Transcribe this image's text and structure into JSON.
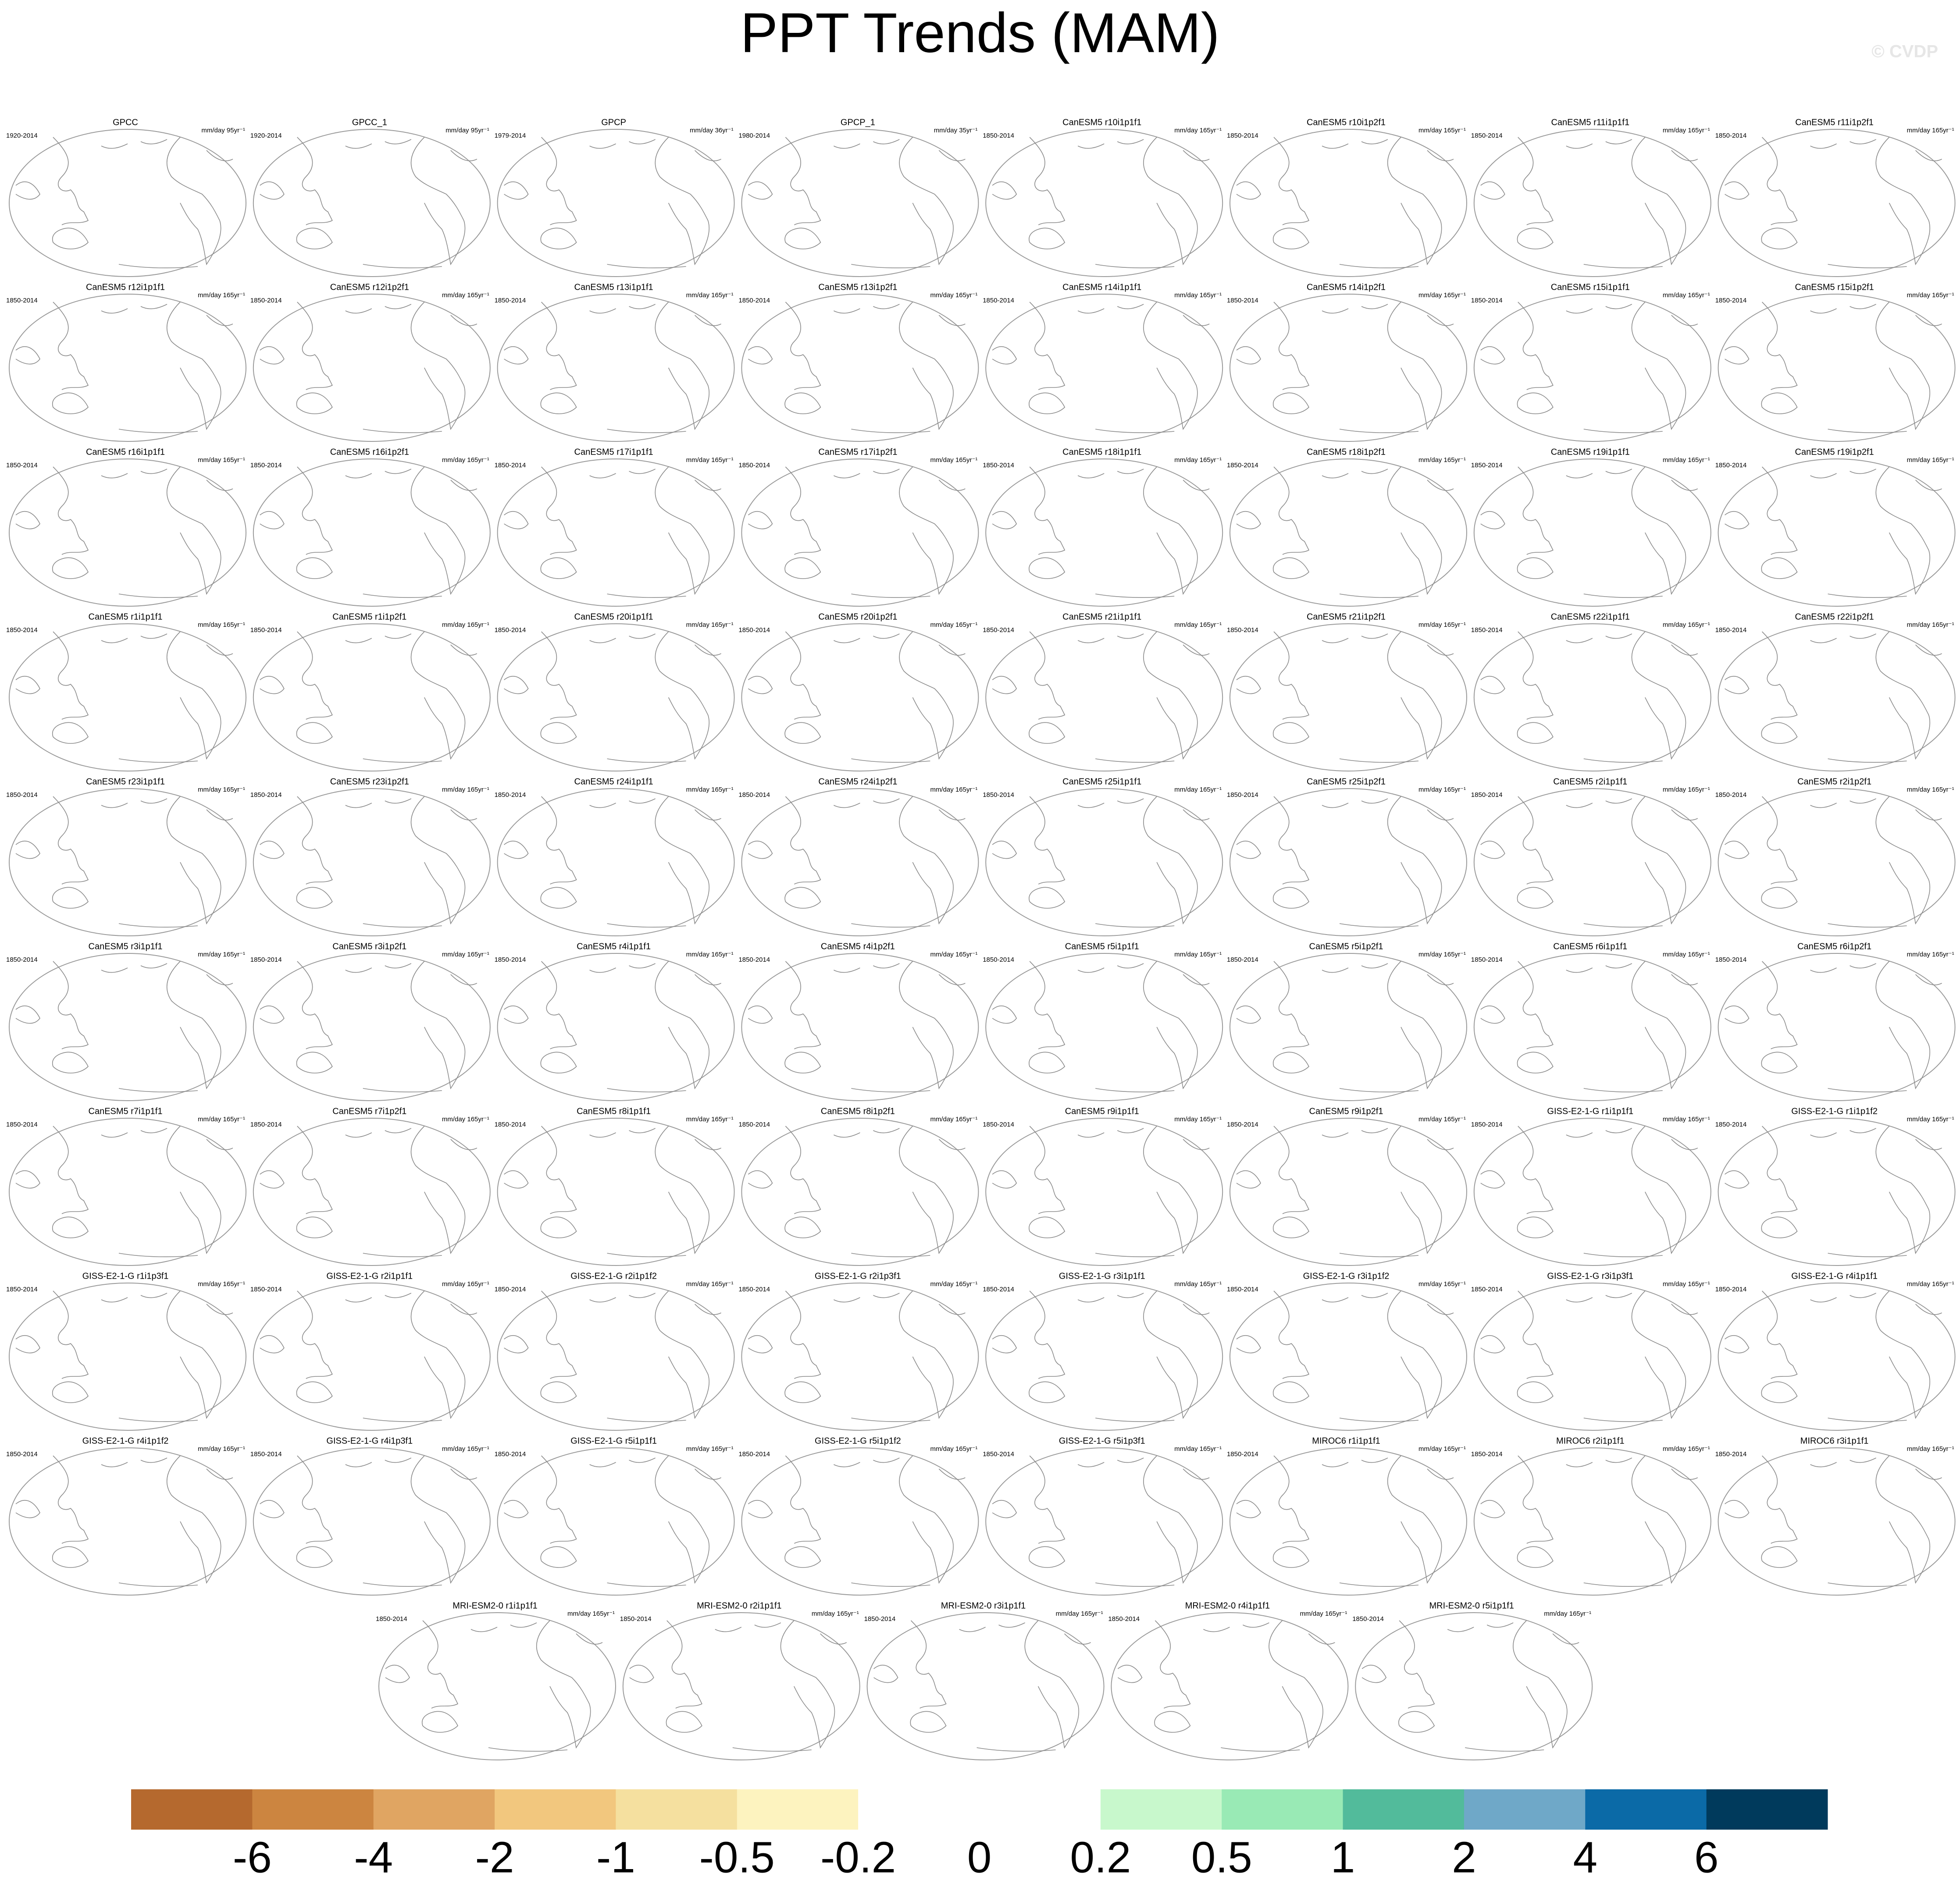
{
  "header": {
    "title": "PPT Trends (MAM)",
    "credit": "© CVDP"
  },
  "panels": [
    {
      "title": "GPCC",
      "period": "1920-2014",
      "units": "mm/day 95yr⁻¹"
    },
    {
      "title": "GPCC_1",
      "period": "1920-2014",
      "units": "mm/day 95yr⁻¹"
    },
    {
      "title": "GPCP",
      "period": "1979-2014",
      "units": "mm/day 36yr⁻¹"
    },
    {
      "title": "GPCP_1",
      "period": "1980-2014",
      "units": "mm/day 35yr⁻¹"
    },
    {
      "title": "CanESM5 r10i1p1f1",
      "period": "1850-2014",
      "units": "mm/day 165yr⁻¹"
    },
    {
      "title": "CanESM5 r10i1p2f1",
      "period": "1850-2014",
      "units": "mm/day 165yr⁻¹"
    },
    {
      "title": "CanESM5 r11i1p1f1",
      "period": "1850-2014",
      "units": "mm/day 165yr⁻¹"
    },
    {
      "title": "CanESM5 r11i1p2f1",
      "period": "1850-2014",
      "units": "mm/day 165yr⁻¹"
    },
    {
      "title": "CanESM5 r12i1p1f1",
      "period": "1850-2014",
      "units": "mm/day 165yr⁻¹"
    },
    {
      "title": "CanESM5 r12i1p2f1",
      "period": "1850-2014",
      "units": "mm/day 165yr⁻¹"
    },
    {
      "title": "CanESM5 r13i1p1f1",
      "period": "1850-2014",
      "units": "mm/day 165yr⁻¹"
    },
    {
      "title": "CanESM5 r13i1p2f1",
      "period": "1850-2014",
      "units": "mm/day 165yr⁻¹"
    },
    {
      "title": "CanESM5 r14i1p1f1",
      "period": "1850-2014",
      "units": "mm/day 165yr⁻¹"
    },
    {
      "title": "CanESM5 r14i1p2f1",
      "period": "1850-2014",
      "units": "mm/day 165yr⁻¹"
    },
    {
      "title": "CanESM5 r15i1p1f1",
      "period": "1850-2014",
      "units": "mm/day 165yr⁻¹"
    },
    {
      "title": "CanESM5 r15i1p2f1",
      "period": "1850-2014",
      "units": "mm/day 165yr⁻¹"
    },
    {
      "title": "CanESM5 r16i1p1f1",
      "period": "1850-2014",
      "units": "mm/day 165yr⁻¹"
    },
    {
      "title": "CanESM5 r16i1p2f1",
      "period": "1850-2014",
      "units": "mm/day 165yr⁻¹"
    },
    {
      "title": "CanESM5 r17i1p1f1",
      "period": "1850-2014",
      "units": "mm/day 165yr⁻¹"
    },
    {
      "title": "CanESM5 r17i1p2f1",
      "period": "1850-2014",
      "units": "mm/day 165yr⁻¹"
    },
    {
      "title": "CanESM5 r18i1p1f1",
      "period": "1850-2014",
      "units": "mm/day 165yr⁻¹"
    },
    {
      "title": "CanESM5 r18i1p2f1",
      "period": "1850-2014",
      "units": "mm/day 165yr⁻¹"
    },
    {
      "title": "CanESM5 r19i1p1f1",
      "period": "1850-2014",
      "units": "mm/day 165yr⁻¹"
    },
    {
      "title": "CanESM5 r19i1p2f1",
      "period": "1850-2014",
      "units": "mm/day 165yr⁻¹"
    },
    {
      "title": "CanESM5 r1i1p1f1",
      "period": "1850-2014",
      "units": "mm/day 165yr⁻¹"
    },
    {
      "title": "CanESM5 r1i1p2f1",
      "period": "1850-2014",
      "units": "mm/day 165yr⁻¹"
    },
    {
      "title": "CanESM5 r20i1p1f1",
      "period": "1850-2014",
      "units": "mm/day 165yr⁻¹"
    },
    {
      "title": "CanESM5 r20i1p2f1",
      "period": "1850-2014",
      "units": "mm/day 165yr⁻¹"
    },
    {
      "title": "CanESM5 r21i1p1f1",
      "period": "1850-2014",
      "units": "mm/day 165yr⁻¹"
    },
    {
      "title": "CanESM5 r21i1p2f1",
      "period": "1850-2014",
      "units": "mm/day 165yr⁻¹"
    },
    {
      "title": "CanESM5 r22i1p1f1",
      "period": "1850-2014",
      "units": "mm/day 165yr⁻¹"
    },
    {
      "title": "CanESM5 r22i1p2f1",
      "period": "1850-2014",
      "units": "mm/day 165yr⁻¹"
    },
    {
      "title": "CanESM5 r23i1p1f1",
      "period": "1850-2014",
      "units": "mm/day 165yr⁻¹"
    },
    {
      "title": "CanESM5 r23i1p2f1",
      "period": "1850-2014",
      "units": "mm/day 165yr⁻¹"
    },
    {
      "title": "CanESM5 r24i1p1f1",
      "period": "1850-2014",
      "units": "mm/day 165yr⁻¹"
    },
    {
      "title": "CanESM5 r24i1p2f1",
      "period": "1850-2014",
      "units": "mm/day 165yr⁻¹"
    },
    {
      "title": "CanESM5 r25i1p1f1",
      "period": "1850-2014",
      "units": "mm/day 165yr⁻¹"
    },
    {
      "title": "CanESM5 r25i1p2f1",
      "period": "1850-2014",
      "units": "mm/day 165yr⁻¹"
    },
    {
      "title": "CanESM5 r2i1p1f1",
      "period": "1850-2014",
      "units": "mm/day 165yr⁻¹"
    },
    {
      "title": "CanESM5 r2i1p2f1",
      "period": "1850-2014",
      "units": "mm/day 165yr⁻¹"
    },
    {
      "title": "CanESM5 r3i1p1f1",
      "period": "1850-2014",
      "units": "mm/day 165yr⁻¹"
    },
    {
      "title": "CanESM5 r3i1p2f1",
      "period": "1850-2014",
      "units": "mm/day 165yr⁻¹"
    },
    {
      "title": "CanESM5 r4i1p1f1",
      "period": "1850-2014",
      "units": "mm/day 165yr⁻¹"
    },
    {
      "title": "CanESM5 r4i1p2f1",
      "period": "1850-2014",
      "units": "mm/day 165yr⁻¹"
    },
    {
      "title": "CanESM5 r5i1p1f1",
      "period": "1850-2014",
      "units": "mm/day 165yr⁻¹"
    },
    {
      "title": "CanESM5 r5i1p2f1",
      "period": "1850-2014",
      "units": "mm/day 165yr⁻¹"
    },
    {
      "title": "CanESM5 r6i1p1f1",
      "period": "1850-2014",
      "units": "mm/day 165yr⁻¹"
    },
    {
      "title": "CanESM5 r6i1p2f1",
      "period": "1850-2014",
      "units": "mm/day 165yr⁻¹"
    },
    {
      "title": "CanESM5 r7i1p1f1",
      "period": "1850-2014",
      "units": "mm/day 165yr⁻¹"
    },
    {
      "title": "CanESM5 r7i1p2f1",
      "period": "1850-2014",
      "units": "mm/day 165yr⁻¹"
    },
    {
      "title": "CanESM5 r8i1p1f1",
      "period": "1850-2014",
      "units": "mm/day 165yr⁻¹"
    },
    {
      "title": "CanESM5 r8i1p2f1",
      "period": "1850-2014",
      "units": "mm/day 165yr⁻¹"
    },
    {
      "title": "CanESM5 r9i1p1f1",
      "period": "1850-2014",
      "units": "mm/day 165yr⁻¹"
    },
    {
      "title": "CanESM5 r9i1p2f1",
      "period": "1850-2014",
      "units": "mm/day 165yr⁻¹"
    },
    {
      "title": "GISS-E2-1-G r1i1p1f1",
      "period": "1850-2014",
      "units": "mm/day 165yr⁻¹"
    },
    {
      "title": "GISS-E2-1-G r1i1p1f2",
      "period": "1850-2014",
      "units": "mm/day 165yr⁻¹"
    },
    {
      "title": "GISS-E2-1-G r1i1p3f1",
      "period": "1850-2014",
      "units": "mm/day 165yr⁻¹"
    },
    {
      "title": "GISS-E2-1-G r2i1p1f1",
      "period": "1850-2014",
      "units": "mm/day 165yr⁻¹"
    },
    {
      "title": "GISS-E2-1-G r2i1p1f2",
      "period": "1850-2014",
      "units": "mm/day 165yr⁻¹"
    },
    {
      "title": "GISS-E2-1-G r2i1p3f1",
      "period": "1850-2014",
      "units": "mm/day 165yr⁻¹"
    },
    {
      "title": "GISS-E2-1-G r3i1p1f1",
      "period": "1850-2014",
      "units": "mm/day 165yr⁻¹"
    },
    {
      "title": "GISS-E2-1-G r3i1p1f2",
      "period": "1850-2014",
      "units": "mm/day 165yr⁻¹"
    },
    {
      "title": "GISS-E2-1-G r3i1p3f1",
      "period": "1850-2014",
      "units": "mm/day 165yr⁻¹"
    },
    {
      "title": "GISS-E2-1-G r4i1p1f1",
      "period": "1850-2014",
      "units": "mm/day 165yr⁻¹"
    },
    {
      "title": "GISS-E2-1-G r4i1p1f2",
      "period": "1850-2014",
      "units": "mm/day 165yr⁻¹"
    },
    {
      "title": "GISS-E2-1-G r4i1p3f1",
      "period": "1850-2014",
      "units": "mm/day 165yr⁻¹"
    },
    {
      "title": "GISS-E2-1-G r5i1p1f1",
      "period": "1850-2014",
      "units": "mm/day 165yr⁻¹"
    },
    {
      "title": "GISS-E2-1-G r5i1p1f2",
      "period": "1850-2014",
      "units": "mm/day 165yr⁻¹"
    },
    {
      "title": "GISS-E2-1-G r5i1p3f1",
      "period": "1850-2014",
      "units": "mm/day 165yr⁻¹"
    },
    {
      "title": "MIROC6 r1i1p1f1",
      "period": "1850-2014",
      "units": "mm/day 165yr⁻¹"
    },
    {
      "title": "MIROC6 r2i1p1f1",
      "period": "1850-2014",
      "units": "mm/day 165yr⁻¹"
    },
    {
      "title": "MIROC6 r3i1p1f1",
      "period": "1850-2014",
      "units": "mm/day 165yr⁻¹"
    },
    {
      "title": "MRI-ESM2-0 r1i1p1f1",
      "period": "1850-2014",
      "units": "mm/day 165yr⁻¹"
    },
    {
      "title": "MRI-ESM2-0 r2i1p1f1",
      "period": "1850-2014",
      "units": "mm/day 165yr⁻¹"
    },
    {
      "title": "MRI-ESM2-0 r3i1p1f1",
      "period": "1850-2014",
      "units": "mm/day 165yr⁻¹"
    },
    {
      "title": "MRI-ESM2-0 r4i1p1f1",
      "period": "1850-2014",
      "units": "mm/day 165yr⁻¹"
    },
    {
      "title": "MRI-ESM2-0 r5i1p1f1",
      "period": "1850-2014",
      "units": "mm/day 165yr⁻¹"
    }
  ],
  "colorbar": {
    "levels": [
      -6,
      -4,
      -2,
      -1,
      -0.5,
      -0.2,
      0,
      0.2,
      0.5,
      1,
      2,
      4,
      6
    ],
    "colors": [
      "#b5692e",
      "#cc8540",
      "#e0a562",
      "#f2c77e",
      "#f5e09f",
      "#fdf3bf",
      "#ffffff",
      "#ffffff",
      "#c8f8cc",
      "#99eab5",
      "#52bb9b",
      "#6fa8c8",
      "#0b6aa7",
      "#003a5c"
    ]
  }
}
